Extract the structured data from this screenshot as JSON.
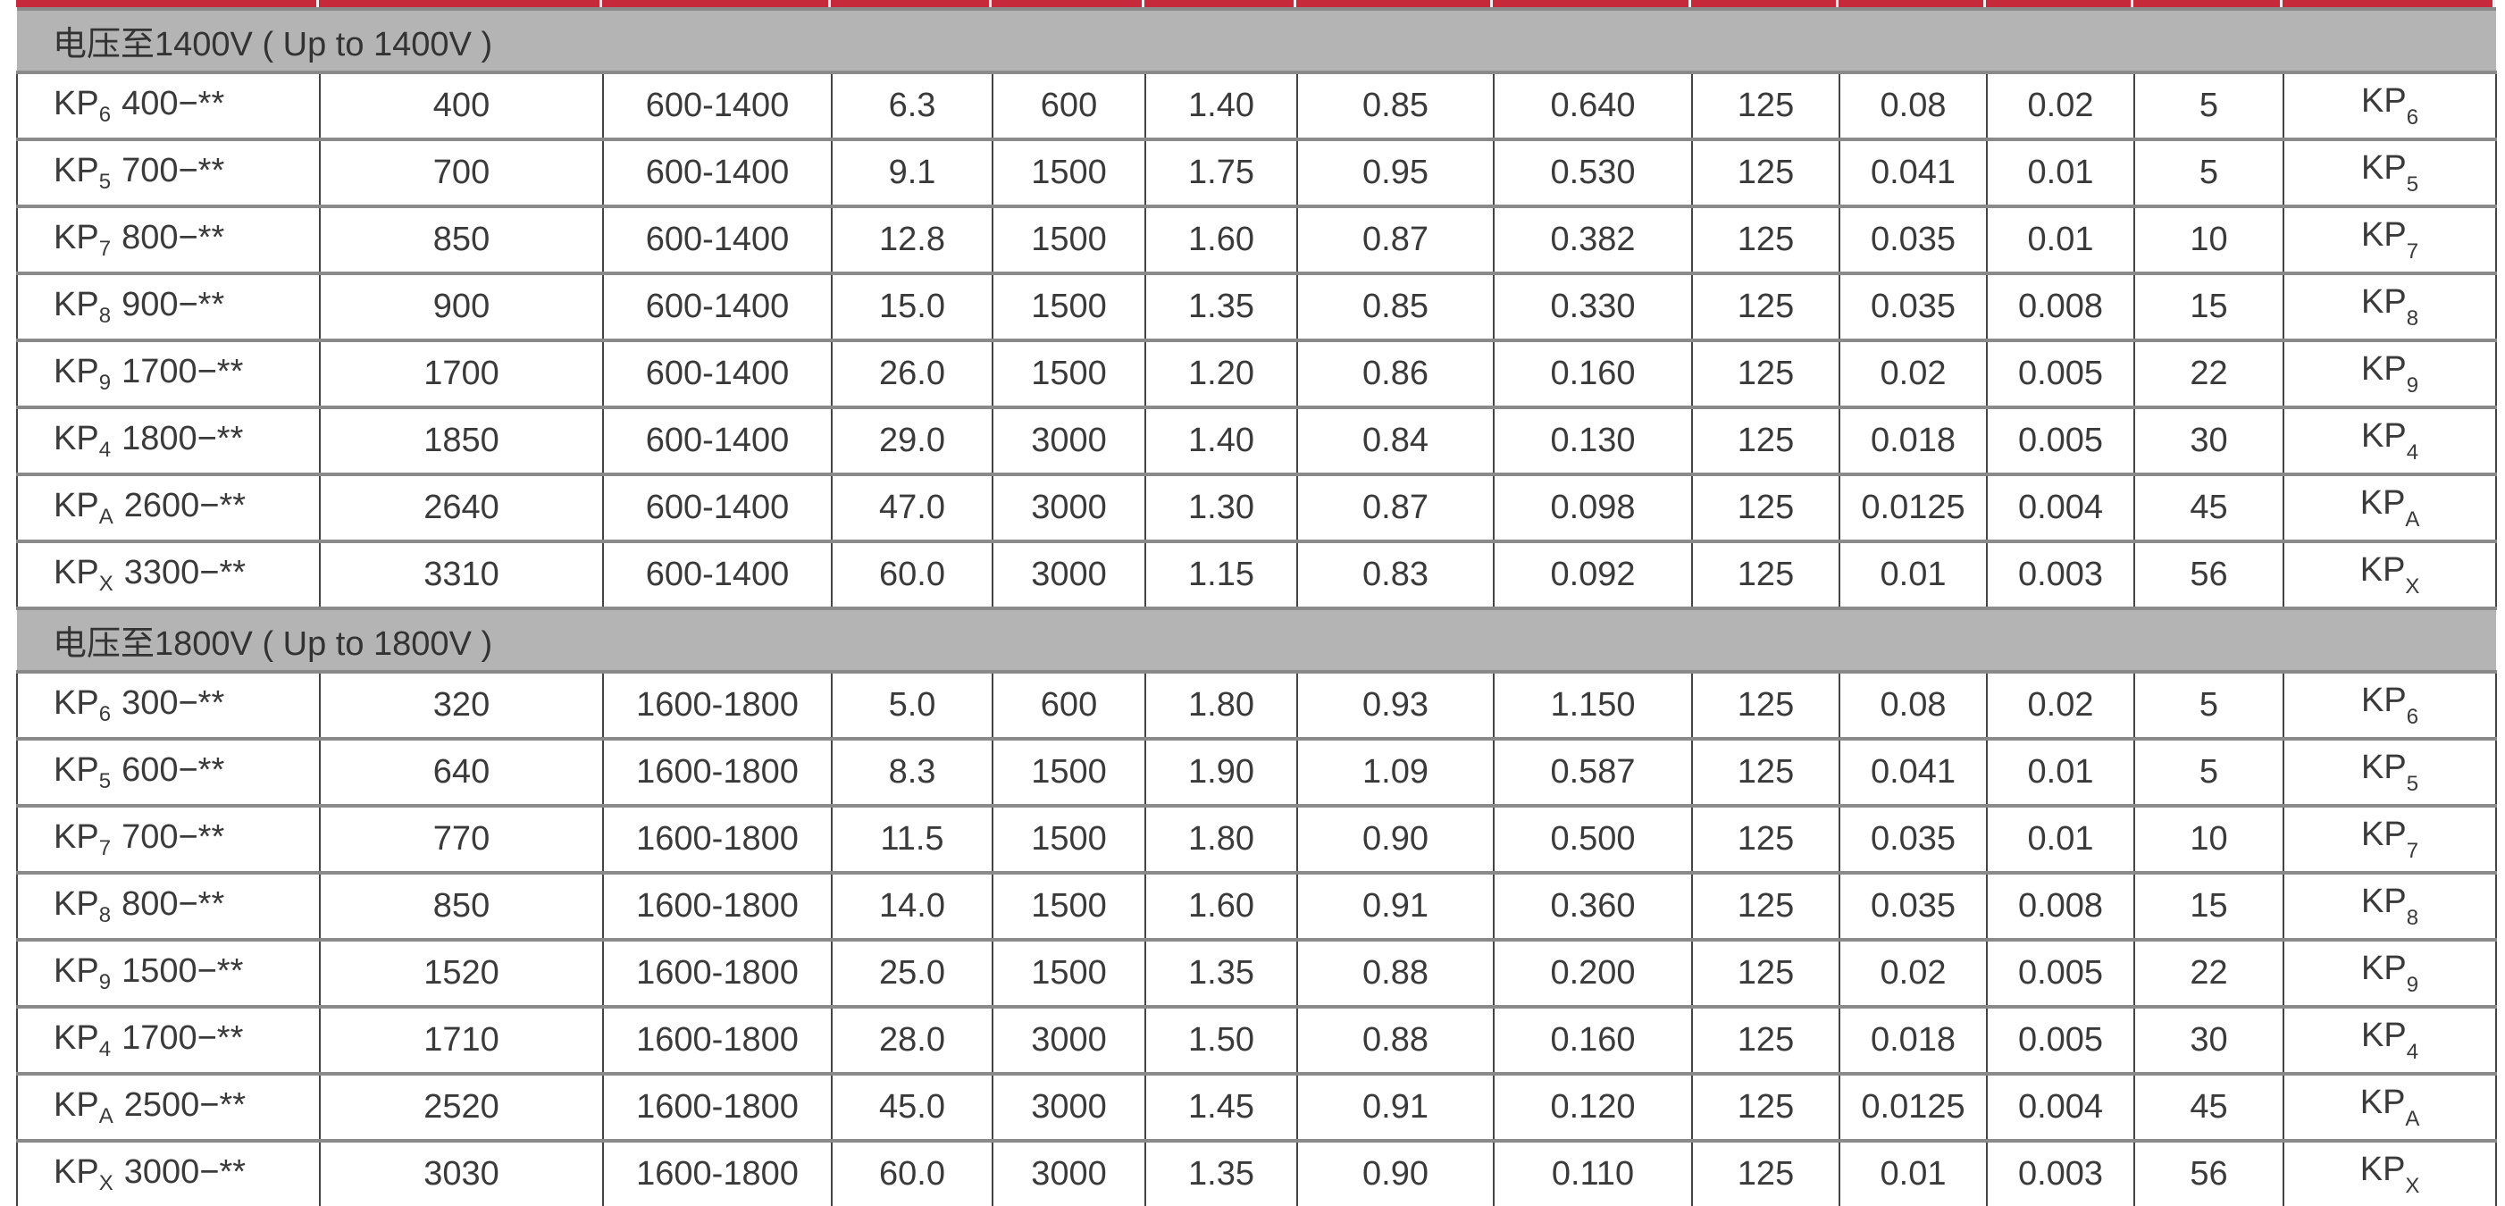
{
  "colors": {
    "accent_bar": "#c62a3a",
    "section_bg": "#b4b4b4"
  },
  "sections": [
    {
      "title": "电压至1400V ( Up to 1400V )",
      "rows": [
        {
          "model": {
            "prefix": "KP",
            "sub": "6",
            "suffix": "400−**"
          },
          "values": [
            "400",
            "600-1400",
            "6.3",
            "600",
            "1.40",
            "0.85",
            "0.640",
            "125",
            "0.08",
            "0.02",
            "5"
          ],
          "code": {
            "prefix": "KP",
            "sub": "6"
          }
        },
        {
          "model": {
            "prefix": "KP",
            "sub": "5",
            "suffix": "700−**"
          },
          "values": [
            "700",
            "600-1400",
            "9.1",
            "1500",
            "1.75",
            "0.95",
            "0.530",
            "125",
            "0.041",
            "0.01",
            "5"
          ],
          "code": {
            "prefix": "KP",
            "sub": "5"
          }
        },
        {
          "model": {
            "prefix": "KP",
            "sub": "7",
            "suffix": "800−**"
          },
          "values": [
            "850",
            "600-1400",
            "12.8",
            "1500",
            "1.60",
            "0.87",
            "0.382",
            "125",
            "0.035",
            "0.01",
            "10"
          ],
          "code": {
            "prefix": "KP",
            "sub": "7"
          }
        },
        {
          "model": {
            "prefix": "KP",
            "sub": "8",
            "suffix": "900−**"
          },
          "values": [
            "900",
            "600-1400",
            "15.0",
            "1500",
            "1.35",
            "0.85",
            "0.330",
            "125",
            "0.035",
            "0.008",
            "15"
          ],
          "code": {
            "prefix": "KP",
            "sub": "8"
          }
        },
        {
          "model": {
            "prefix": "KP",
            "sub": "9",
            "suffix": "1700−**"
          },
          "values": [
            "1700",
            "600-1400",
            "26.0",
            "1500",
            "1.20",
            "0.86",
            "0.160",
            "125",
            "0.02",
            "0.005",
            "22"
          ],
          "code": {
            "prefix": "KP",
            "sub": "9"
          }
        },
        {
          "model": {
            "prefix": "KP",
            "sub": "4",
            "suffix": "1800−**"
          },
          "values": [
            "1850",
            "600-1400",
            "29.0",
            "3000",
            "1.40",
            "0.84",
            "0.130",
            "125",
            "0.018",
            "0.005",
            "30"
          ],
          "code": {
            "prefix": "KP",
            "sub": "4"
          }
        },
        {
          "model": {
            "prefix": "KP",
            "sub": "A",
            "suffix": "2600−**"
          },
          "values": [
            "2640",
            "600-1400",
            "47.0",
            "3000",
            "1.30",
            "0.87",
            "0.098",
            "125",
            "0.0125",
            "0.004",
            "45"
          ],
          "code": {
            "prefix": "KP",
            "sub": "A"
          }
        },
        {
          "model": {
            "prefix": "KP",
            "sub": "X",
            "suffix": "3300−**"
          },
          "values": [
            "3310",
            "600-1400",
            "60.0",
            "3000",
            "1.15",
            "0.83",
            "0.092",
            "125",
            "0.01",
            "0.003",
            "56"
          ],
          "code": {
            "prefix": "KP",
            "sub": "X"
          }
        }
      ]
    },
    {
      "title": "电压至1800V ( Up to 1800V )",
      "rows": [
        {
          "model": {
            "prefix": "KP",
            "sub": "6",
            "suffix": "300−**"
          },
          "values": [
            "320",
            "1600-1800",
            "5.0",
            "600",
            "1.80",
            "0.93",
            "1.150",
            "125",
            "0.08",
            "0.02",
            "5"
          ],
          "code": {
            "prefix": "KP",
            "sub": "6"
          }
        },
        {
          "model": {
            "prefix": "KP",
            "sub": "5",
            "suffix": "600−**"
          },
          "values": [
            "640",
            "1600-1800",
            "8.3",
            "1500",
            "1.90",
            "1.09",
            "0.587",
            "125",
            "0.041",
            "0.01",
            "5"
          ],
          "code": {
            "prefix": "KP",
            "sub": "5"
          }
        },
        {
          "model": {
            "prefix": "KP",
            "sub": "7",
            "suffix": "700−**"
          },
          "values": [
            "770",
            "1600-1800",
            "11.5",
            "1500",
            "1.80",
            "0.90",
            "0.500",
            "125",
            "0.035",
            "0.01",
            "10"
          ],
          "code": {
            "prefix": "KP",
            "sub": "7"
          }
        },
        {
          "model": {
            "prefix": "KP",
            "sub": "8",
            "suffix": "800−**"
          },
          "values": [
            "850",
            "1600-1800",
            "14.0",
            "1500",
            "1.60",
            "0.91",
            "0.360",
            "125",
            "0.035",
            "0.008",
            "15"
          ],
          "code": {
            "prefix": "KP",
            "sub": "8"
          }
        },
        {
          "model": {
            "prefix": "KP",
            "sub": "9",
            "suffix": "1500−**"
          },
          "values": [
            "1520",
            "1600-1800",
            "25.0",
            "1500",
            "1.35",
            "0.88",
            "0.200",
            "125",
            "0.02",
            "0.005",
            "22"
          ],
          "code": {
            "prefix": "KP",
            "sub": "9"
          }
        },
        {
          "model": {
            "prefix": "KP",
            "sub": "4",
            "suffix": "1700−**"
          },
          "values": [
            "1710",
            "1600-1800",
            "28.0",
            "3000",
            "1.50",
            "0.88",
            "0.160",
            "125",
            "0.018",
            "0.005",
            "30"
          ],
          "code": {
            "prefix": "KP",
            "sub": "4"
          }
        },
        {
          "model": {
            "prefix": "KP",
            "sub": "A",
            "suffix": "2500−**"
          },
          "values": [
            "2520",
            "1600-1800",
            "45.0",
            "3000",
            "1.45",
            "0.91",
            "0.120",
            "125",
            "0.0125",
            "0.004",
            "45"
          ],
          "code": {
            "prefix": "KP",
            "sub": "A"
          }
        },
        {
          "model": {
            "prefix": "KP",
            "sub": "X",
            "suffix": "3000−**"
          },
          "values": [
            "3030",
            "1600-1800",
            "60.0",
            "3000",
            "1.35",
            "0.90",
            "0.110",
            "125",
            "0.01",
            "0.003",
            "56"
          ],
          "code": {
            "prefix": "KP",
            "sub": "X"
          }
        }
      ]
    }
  ]
}
